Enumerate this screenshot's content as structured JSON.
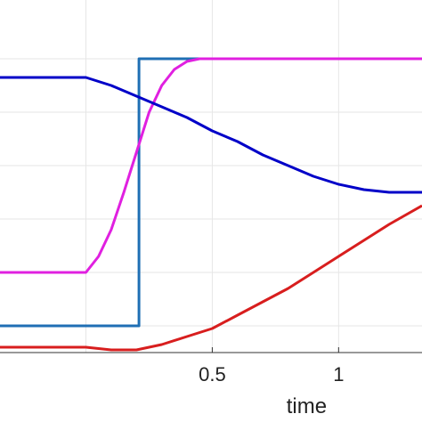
{
  "chart_data": {
    "type": "line",
    "title": "",
    "xlabel": "time",
    "ylabel": "",
    "xlim": [
      -0.34,
      1.33
    ],
    "ylim": [
      -0.1,
      1.22
    ],
    "x_ticks": [
      0.5,
      1
    ],
    "x_tick_labels": [
      "0.5",
      "1"
    ],
    "grid": true,
    "legend": null,
    "series": [
      {
        "color": "#1f6fb4",
        "x": [
          -0.34,
          0.21,
          0.21,
          0.5,
          1.33
        ],
        "y": [
          0.0,
          0.0,
          1.0,
          1.0,
          1.0
        ]
      },
      {
        "color": "#e020e0",
        "x": [
          -0.34,
          0.0,
          0.05,
          0.1,
          0.15,
          0.2,
          0.25,
          0.3,
          0.35,
          0.4,
          0.45,
          0.5,
          1.33
        ],
        "y": [
          0.2,
          0.2,
          0.26,
          0.36,
          0.5,
          0.65,
          0.8,
          0.9,
          0.96,
          0.99,
          1.0,
          1.0,
          1.0
        ]
      },
      {
        "color": "#0000c8",
        "x": [
          -0.34,
          0.0,
          0.1,
          0.2,
          0.3,
          0.4,
          0.5,
          0.6,
          0.7,
          0.8,
          0.9,
          1.0,
          1.1,
          1.2,
          1.33
        ],
        "y": [
          0.93,
          0.93,
          0.9,
          0.86,
          0.82,
          0.78,
          0.73,
          0.69,
          0.64,
          0.6,
          0.56,
          0.53,
          0.51,
          0.5,
          0.5
        ]
      },
      {
        "color": "#d81e1e",
        "x": [
          -0.34,
          0.0,
          0.1,
          0.2,
          0.3,
          0.4,
          0.5,
          0.6,
          0.7,
          0.8,
          0.9,
          1.0,
          1.1,
          1.2,
          1.33
        ],
        "y": [
          -0.08,
          -0.08,
          -0.09,
          -0.09,
          -0.07,
          -0.04,
          -0.01,
          0.04,
          0.09,
          0.14,
          0.2,
          0.26,
          0.32,
          0.38,
          0.45
        ]
      }
    ]
  }
}
